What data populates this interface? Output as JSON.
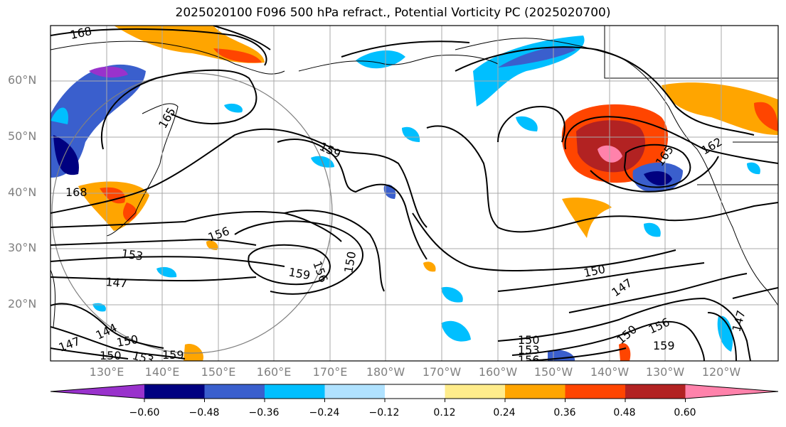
{
  "title": "2025020100 F096 500 hPa refract., Potential Vorticity PC (2025020700)",
  "lat_labels": [
    "60°N",
    "50°N",
    "40°N",
    "30°N",
    "20°N"
  ],
  "lon_labels": [
    "130°E",
    "140°E",
    "150°E",
    "160°E",
    "170°E",
    "180°W",
    "170°W",
    "160°W",
    "150°W",
    "140°W",
    "130°W",
    "120°W"
  ],
  "contour_labels": [
    "168",
    "165",
    "168",
    "159",
    "156",
    "153",
    "147",
    "144",
    "150",
    "159",
    "156",
    "150",
    "150",
    "147",
    "150",
    "156",
    "159",
    "150",
    "153",
    "156",
    "165",
    "162",
    "147",
    "147",
    "150",
    "153",
    "159"
  ],
  "colorbar": {
    "colors": [
      "#9932CC",
      "#000080",
      "#3A5FCD",
      "#00BFFF",
      "#B0E2FF",
      "#FFFFFF",
      "#FFEC8B",
      "#FFA500",
      "#FF4500",
      "#B22222",
      "#FF82AB"
    ],
    "tick_labels": [
      "−0.60",
      "−0.48",
      "−0.36",
      "−0.24",
      "−0.12",
      "0.12",
      "0.24",
      "0.36",
      "0.48",
      "0.60"
    ]
  }
}
